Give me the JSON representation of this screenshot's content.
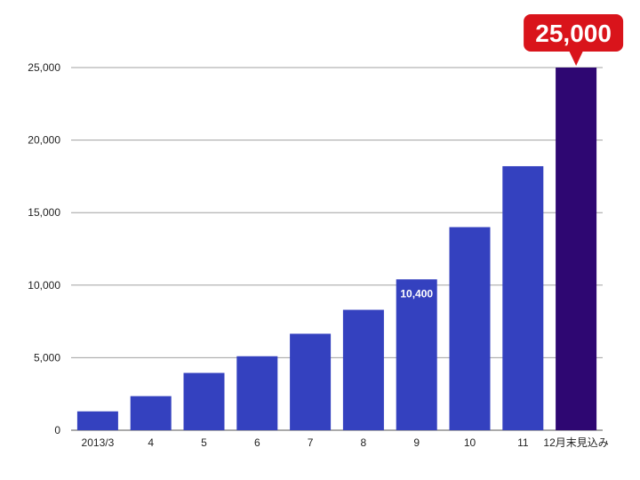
{
  "chart_data": {
    "type": "bar",
    "categories": [
      "2013/3",
      "4",
      "5",
      "6",
      "7",
      "8",
      "9",
      "10",
      "11",
      "12月末見込み"
    ],
    "values": [
      1300,
      2350,
      3950,
      5100,
      6650,
      8300,
      10400,
      14000,
      18200,
      25000
    ],
    "ylim": [
      0,
      25000
    ],
    "yticks": [
      "0",
      "5,000",
      "10,000",
      "15,000",
      "20,000",
      "25,000"
    ],
    "ytick_values": [
      0,
      5000,
      10000,
      15000,
      20000,
      25000
    ],
    "grid": true,
    "data_labels": [
      {
        "category": "9",
        "text": "10,400"
      }
    ],
    "callout": {
      "category": "12月末見込み",
      "text": "25,000"
    },
    "colors": {
      "bar": "#3441bf",
      "highlight_bar": "#2e0772",
      "callout": "#d9141b",
      "grid": "#a0a0a0"
    }
  }
}
